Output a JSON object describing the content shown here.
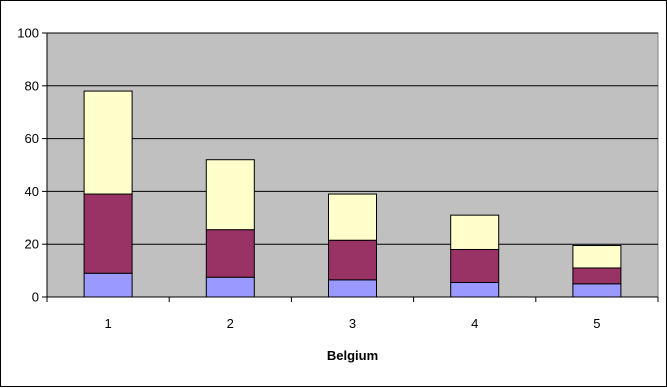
{
  "chart_data": {
    "type": "bar",
    "stacked": true,
    "title": "",
    "xlabel": "Belgium",
    "ylabel": "",
    "categories": [
      "1",
      "2",
      "3",
      "4",
      "5"
    ],
    "ylim": [
      0,
      100
    ],
    "yticks": [
      0,
      20,
      40,
      60,
      80,
      100
    ],
    "grid": true,
    "legend": "none",
    "series": [
      {
        "color": "#9999FF",
        "values": [
          9,
          7.5,
          6.5,
          5.5,
          5
        ]
      },
      {
        "color": "#993366",
        "values": [
          30,
          18,
          15,
          12.5,
          6
        ]
      },
      {
        "color": "#FFFFCC",
        "values": [
          39,
          26.5,
          17.5,
          13,
          8.5
        ]
      }
    ],
    "plot_background": "#C0C0C0"
  }
}
